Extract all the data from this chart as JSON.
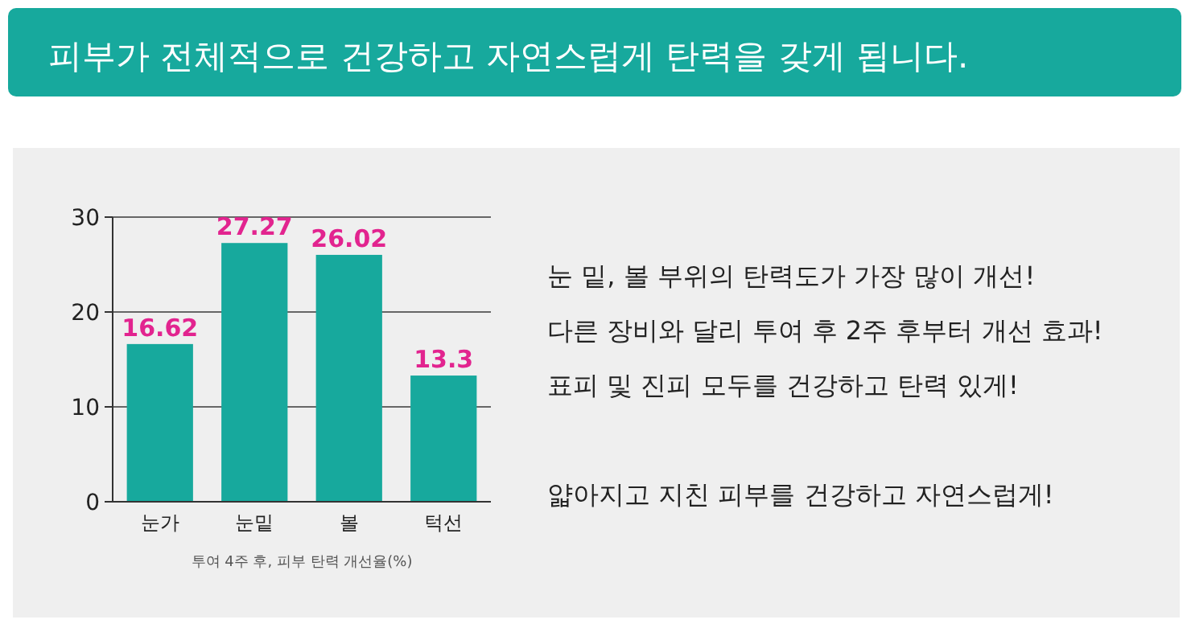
{
  "chart_data": {
    "type": "bar",
    "title": "피부가 전체적으로 건강하고 자연스럽게 탄력을 갖게 됩니다.",
    "xlabel": "투여 4주 후, 피부 탄력 개선율(%)",
    "categories": [
      "눈가",
      "눈밑",
      "볼",
      "턱선"
    ],
    "values": [
      16.62,
      27.27,
      26.02,
      13.3
    ],
    "color": "#17a99d",
    "ylim": [
      0,
      30
    ],
    "yticks": [
      0,
      10,
      20,
      30
    ],
    "grid": "y",
    "data_labels": true,
    "annotations": [
      "눈 밑, 볼 부위의 탄력도가 가장 많이 개선!",
      "다른 장비와 달리 투여 후 2주 후부터 개선 효과!",
      "표피 및 진피 모두를 건강하고 탄력 있게!",
      "얇아지고 지친 피부를 건강하고 자연스럽게!"
    ]
  }
}
